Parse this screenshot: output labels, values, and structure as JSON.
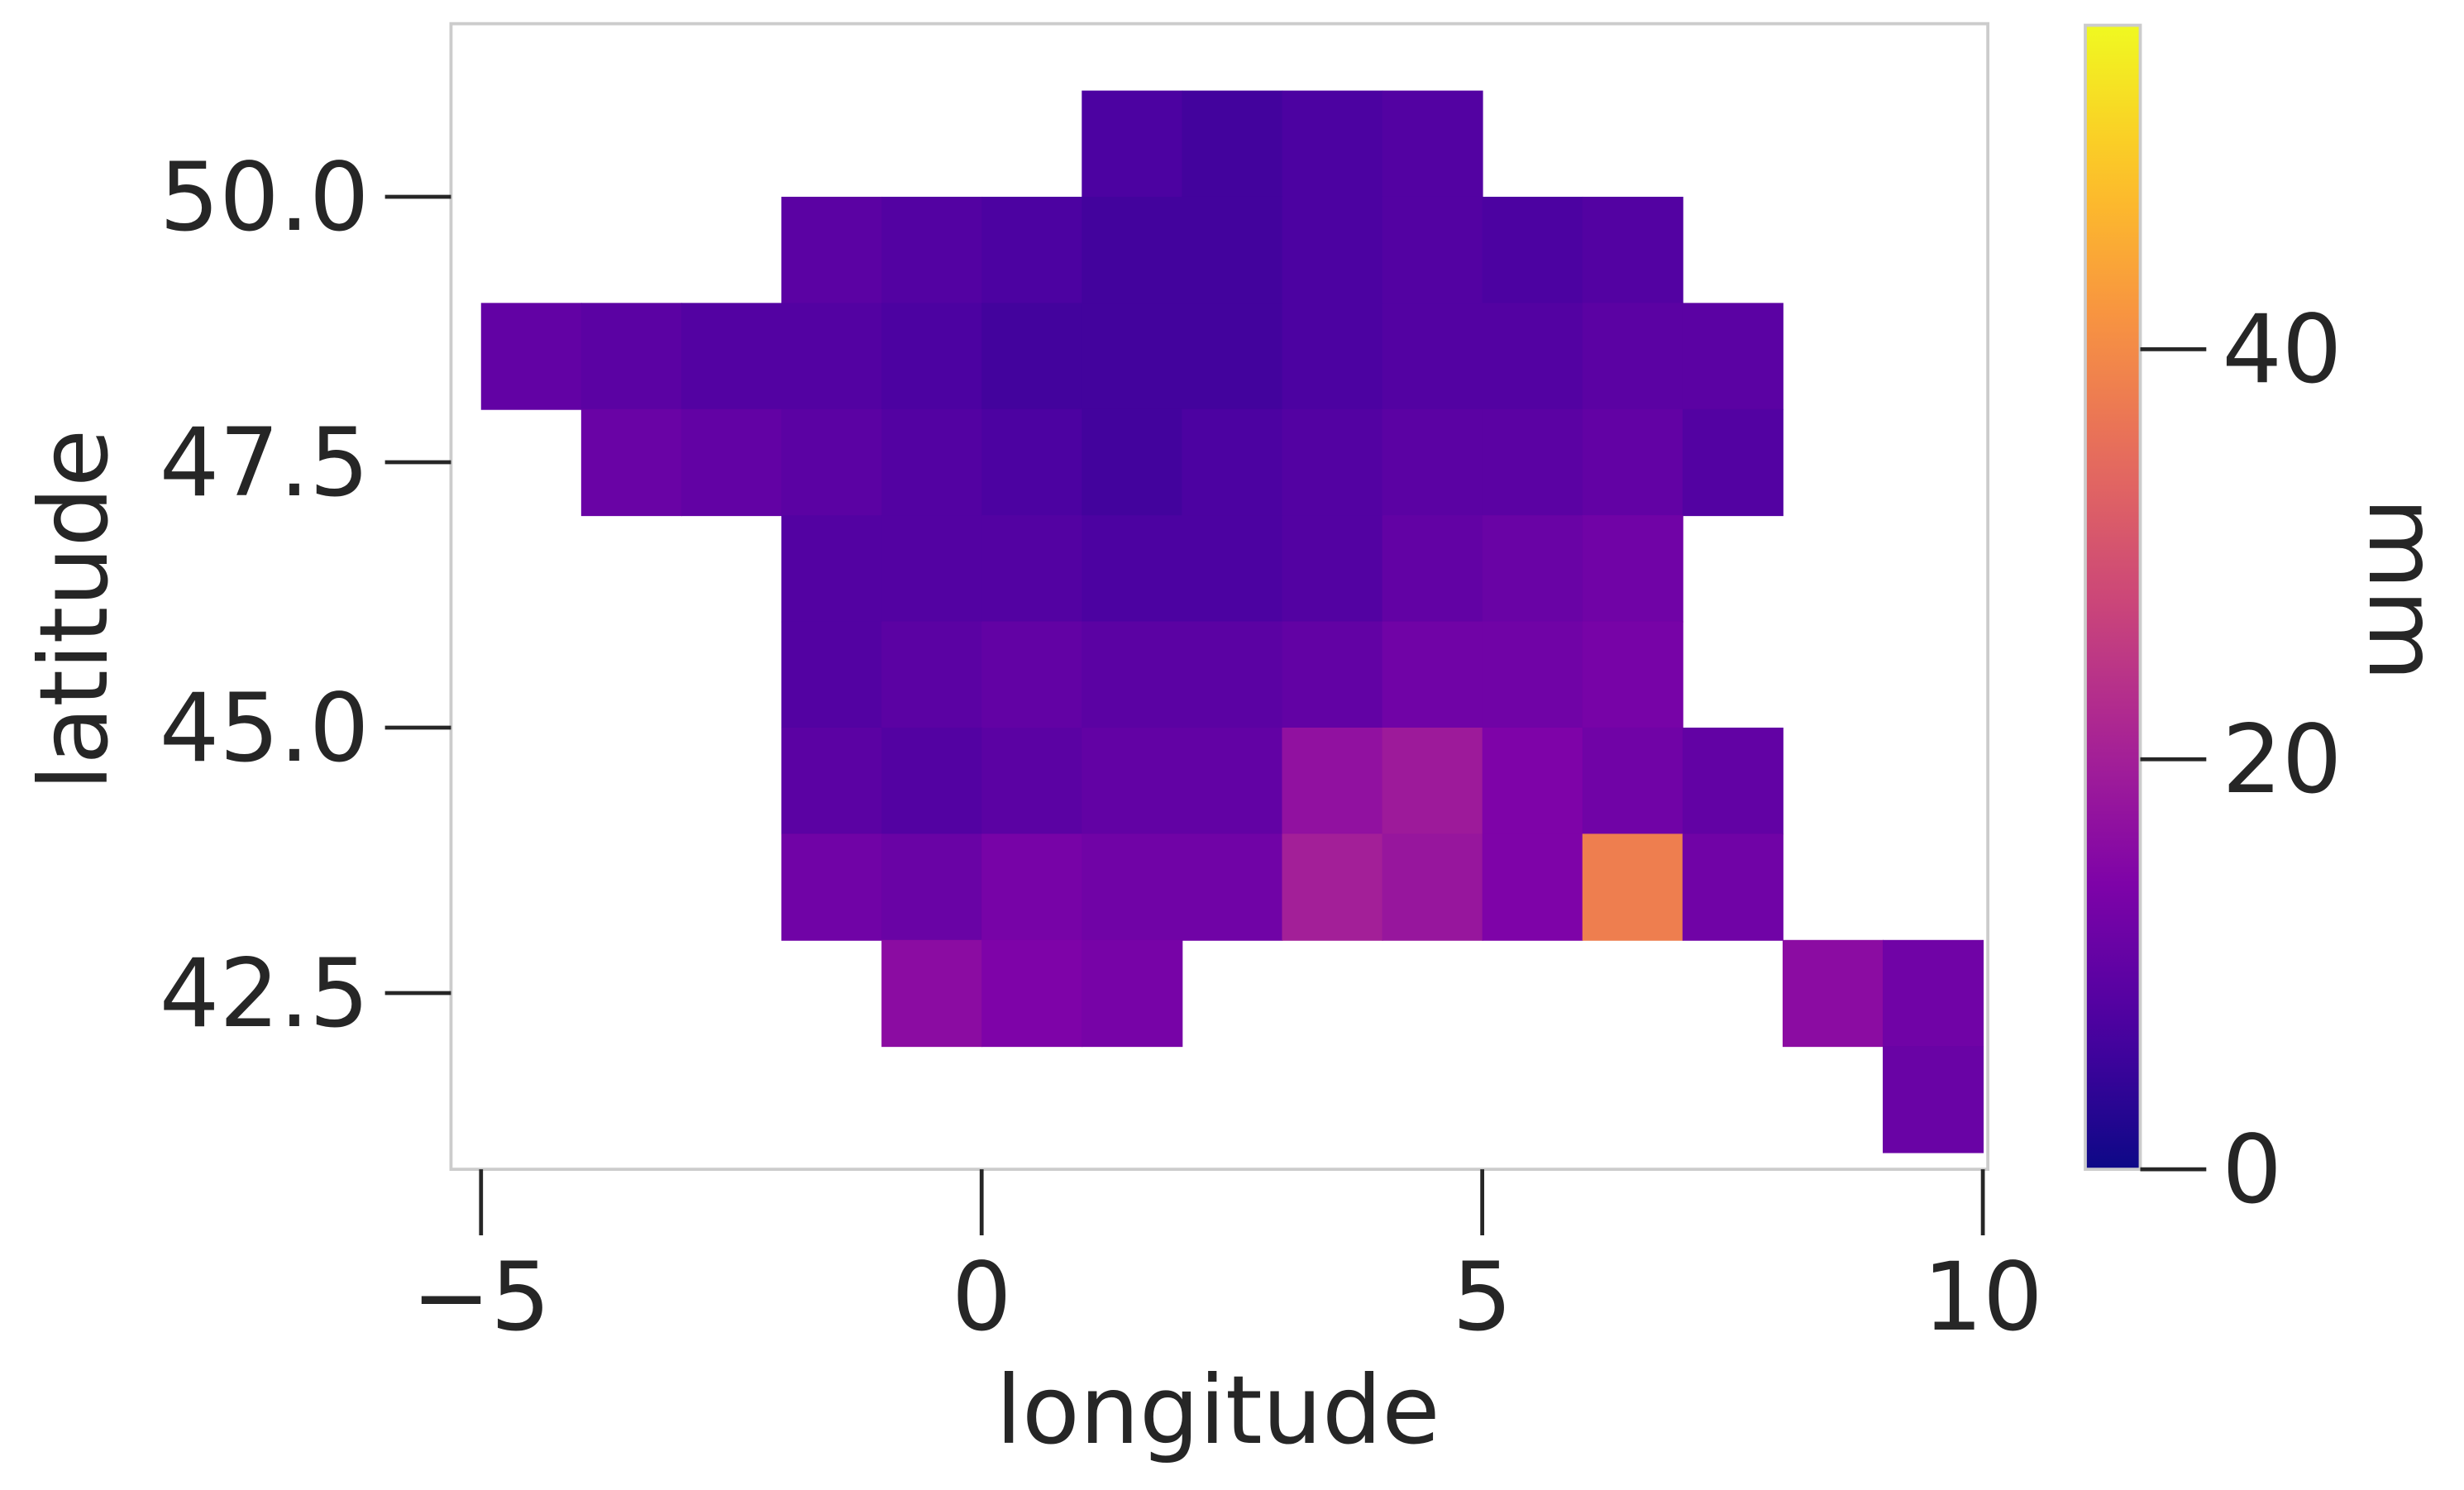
{
  "chart_data": {
    "type": "heatmap",
    "xlabel": "longitude",
    "ylabel": "latitude",
    "colorbar_label": "mm",
    "colormap": "plasma",
    "x": [
      -4.5,
      -3.5,
      -2.5,
      -1.5,
      -0.5,
      0.5,
      1.5,
      2.5,
      3.5,
      4.5,
      5.5,
      6.5,
      7.5,
      8.5,
      9.5
    ],
    "y": [
      50.5,
      49.5,
      48.5,
      47.5,
      46.5,
      45.5,
      44.5,
      43.5,
      42.5,
      41.5
    ],
    "values": [
      [
        null,
        null,
        null,
        null,
        null,
        null,
        7,
        6,
        7,
        8,
        null,
        null,
        null,
        null,
        null
      ],
      [
        null,
        null,
        null,
        9,
        8,
        7,
        6,
        6,
        7,
        8,
        7,
        8,
        null,
        null,
        null
      ],
      [
        10,
        9,
        8,
        8,
        7,
        6,
        6,
        6,
        7,
        8,
        8,
        9,
        9,
        null,
        null
      ],
      [
        null,
        11,
        10,
        9,
        8,
        7,
        6,
        7,
        8,
        9,
        9,
        10,
        8,
        null,
        null
      ],
      [
        null,
        null,
        null,
        8,
        8,
        8,
        7,
        7,
        8,
        10,
        11,
        12,
        null,
        null,
        null
      ],
      [
        null,
        null,
        null,
        8,
        9,
        10,
        9,
        9,
        10,
        12,
        12,
        13,
        null,
        null,
        null
      ],
      [
        null,
        null,
        null,
        9,
        8,
        9,
        10,
        10,
        17,
        19,
        14,
        12,
        10,
        null,
        null
      ],
      [
        null,
        null,
        null,
        12,
        11,
        13,
        12,
        12,
        20,
        18,
        14,
        38,
        12,
        null,
        null
      ],
      [
        null,
        null,
        null,
        null,
        16,
        14,
        13,
        null,
        null,
        null,
        null,
        null,
        null,
        16,
        12
      ],
      [
        null,
        null,
        null,
        null,
        null,
        null,
        null,
        null,
        null,
        null,
        null,
        null,
        null,
        null,
        11
      ]
    ],
    "xlim": [
      -5.3,
      10.05
    ],
    "ylim": [
      40.84,
      51.63
    ],
    "xticks": [
      {
        "value": -5,
        "label": "−5"
      },
      0,
      5,
      10
    ],
    "yticks": [
      {
        "value": 42.5,
        "label": "42.5"
      },
      {
        "value": 45,
        "label": "45.0"
      },
      {
        "value": 47.5,
        "label": "47.5"
      },
      {
        "value": 50,
        "label": "50.0"
      }
    ],
    "clim": [
      0,
      55.8
    ],
    "cticks": [
      0,
      20,
      40
    ]
  }
}
